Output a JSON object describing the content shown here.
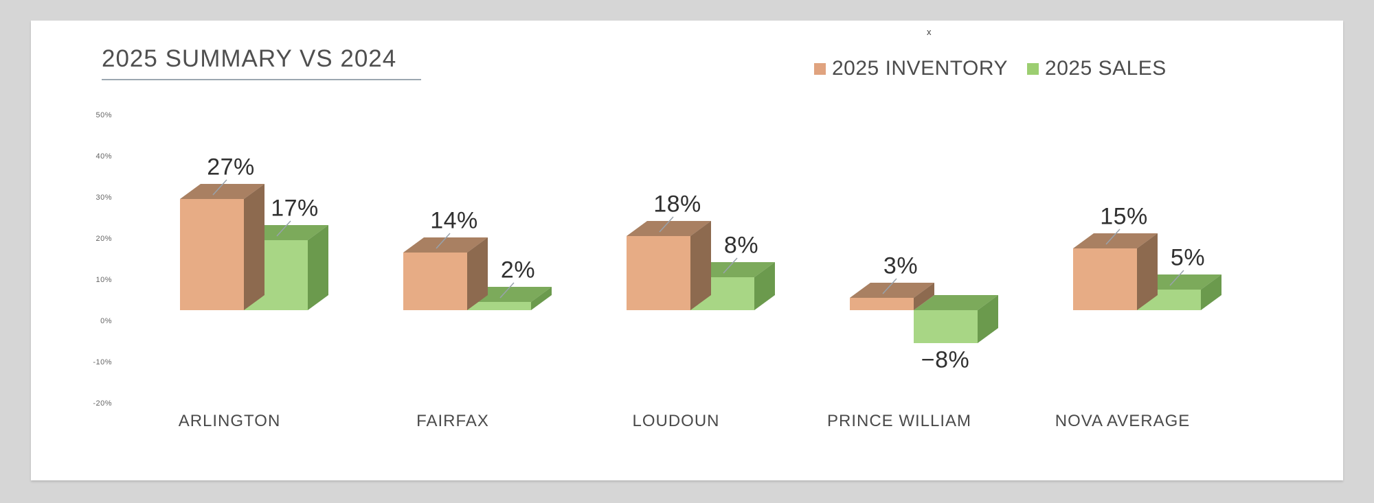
{
  "window": {
    "stray_character": "x"
  },
  "header": {
    "title": "2025 SUMMARY VS 2024"
  },
  "legend": [
    {
      "label": "2025 INVENTORY",
      "color": "#e0a37f"
    },
    {
      "label": "2025 SALES",
      "color": "#9cce71"
    }
  ],
  "chart_data": {
    "type": "bar",
    "style": "3d-column",
    "title": "2025 SUMMARY VS 2024",
    "categories": [
      "ARLINGTON",
      "FAIRFAX",
      "LOUDOUN",
      "PRINCE WILLIAM",
      "NOVA AVERAGE"
    ],
    "series": [
      {
        "name": "2025 INVENTORY",
        "values": [
          27,
          14,
          18,
          3,
          15
        ],
        "colors": {
          "front": "#e7ac85",
          "top": "#a98062",
          "side": "#8d6a4f"
        }
      },
      {
        "name": "2025 SALES",
        "values": [
          17,
          2,
          8,
          -8,
          5
        ],
        "colors": {
          "front": "#a8d685",
          "top": "#7caa5b",
          "side": "#6b9a4d"
        }
      }
    ],
    "data_label_format": "percent",
    "y_axis": {
      "unit": "%",
      "min": -20,
      "max": 50,
      "tick_step": 10,
      "ticks": [
        "50%",
        "40%",
        "30%",
        "20%",
        "10%",
        "0%",
        "-10%",
        "-20%"
      ]
    },
    "grid": false,
    "legend_position": "top-right",
    "leader_line_color": "#98a2ac"
  }
}
